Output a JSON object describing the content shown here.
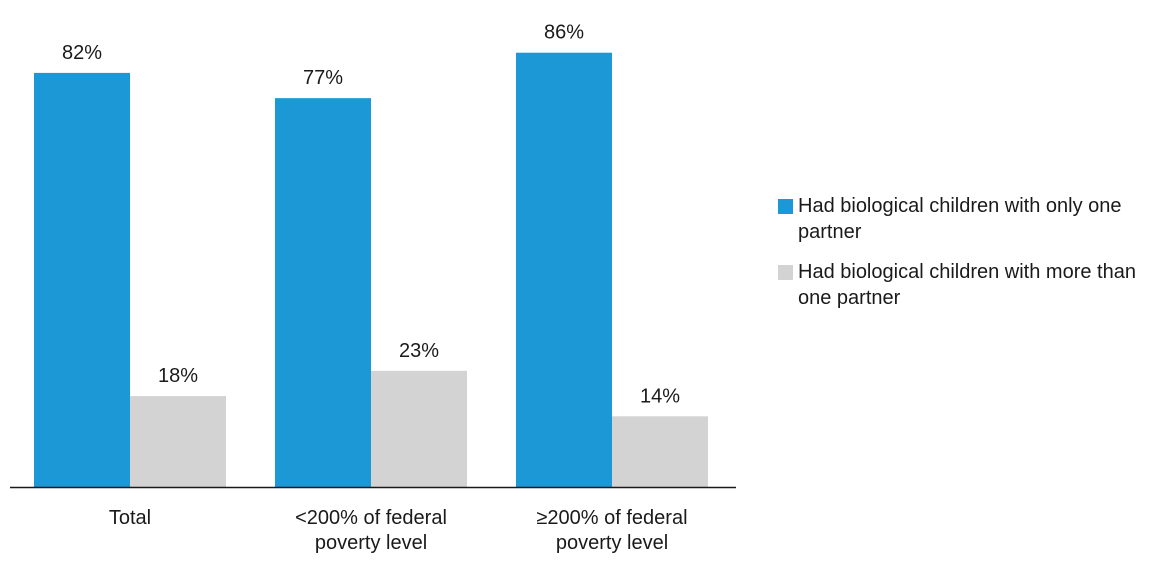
{
  "chart_data": {
    "type": "bar",
    "categories": [
      "Total",
      "<200% of federal poverty level",
      "≥200% of federal poverty level"
    ],
    "series": [
      {
        "name": "Had biological children with only one partner",
        "values": [
          82,
          77,
          86
        ],
        "labels": [
          "82%",
          "77%",
          "86%"
        ],
        "color": "#1b98d5"
      },
      {
        "name": "Had biological children with more than one partner",
        "values": [
          18,
          23,
          14
        ],
        "labels": [
          "18%",
          "23%",
          "14%"
        ],
        "color": "#d3d3d3"
      }
    ],
    "ylim": [
      0,
      100
    ],
    "grid": false,
    "legend_position": "right",
    "title": "",
    "xlabel": "",
    "ylabel": ""
  }
}
